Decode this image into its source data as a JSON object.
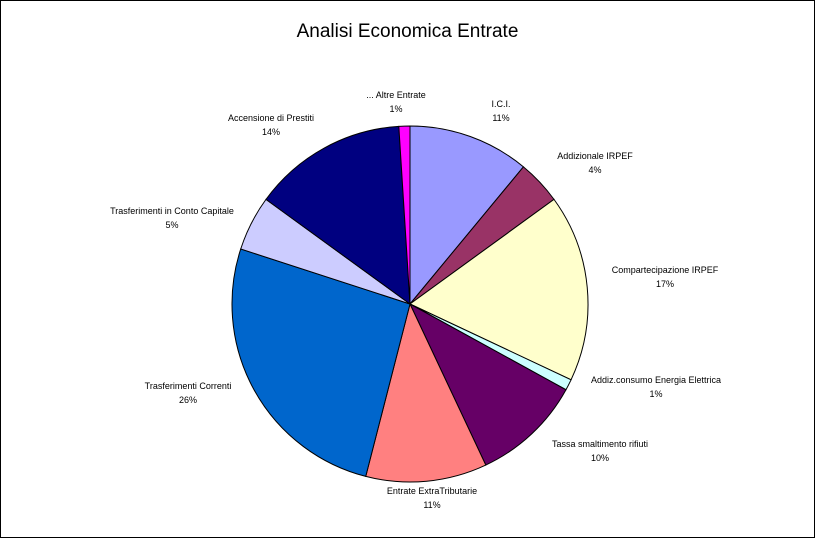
{
  "chart_data": {
    "type": "pie",
    "title": "Analisi Economica Entrate",
    "slices": [
      {
        "label": "I.C.I.",
        "pct_label": "11%",
        "value": 11,
        "color": "#9999ff"
      },
      {
        "label": "Addizionale IRPEF",
        "pct_label": "4%",
        "value": 4,
        "color": "#993366"
      },
      {
        "label": "Compartecipazione IRPEF",
        "pct_label": "17%",
        "value": 17,
        "color": "#ffffcc"
      },
      {
        "label": "Addiz.consumo Energia Elettrica",
        "pct_label": "1%",
        "value": 1,
        "color": "#ccffff"
      },
      {
        "label": "Tassa smaltimento rifiuti",
        "pct_label": "10%",
        "value": 10,
        "color": "#660066"
      },
      {
        "label": "Entrate ExtraTributarie",
        "pct_label": "11%",
        "value": 11,
        "color": "#ff8080"
      },
      {
        "label": "Trasferimenti Correnti",
        "pct_label": "26%",
        "value": 26,
        "color": "#0066cc"
      },
      {
        "label": "Trasferimenti in Conto Capitale",
        "pct_label": "5%",
        "value": 5,
        "color": "#ccccff"
      },
      {
        "label": "Accensione di Prestiti",
        "pct_label": "14%",
        "value": 14,
        "color": "#000080"
      },
      {
        "label": "... Altre Entrate",
        "pct_label": "1%",
        "value": 1,
        "color": "#ff00ff"
      }
    ]
  }
}
